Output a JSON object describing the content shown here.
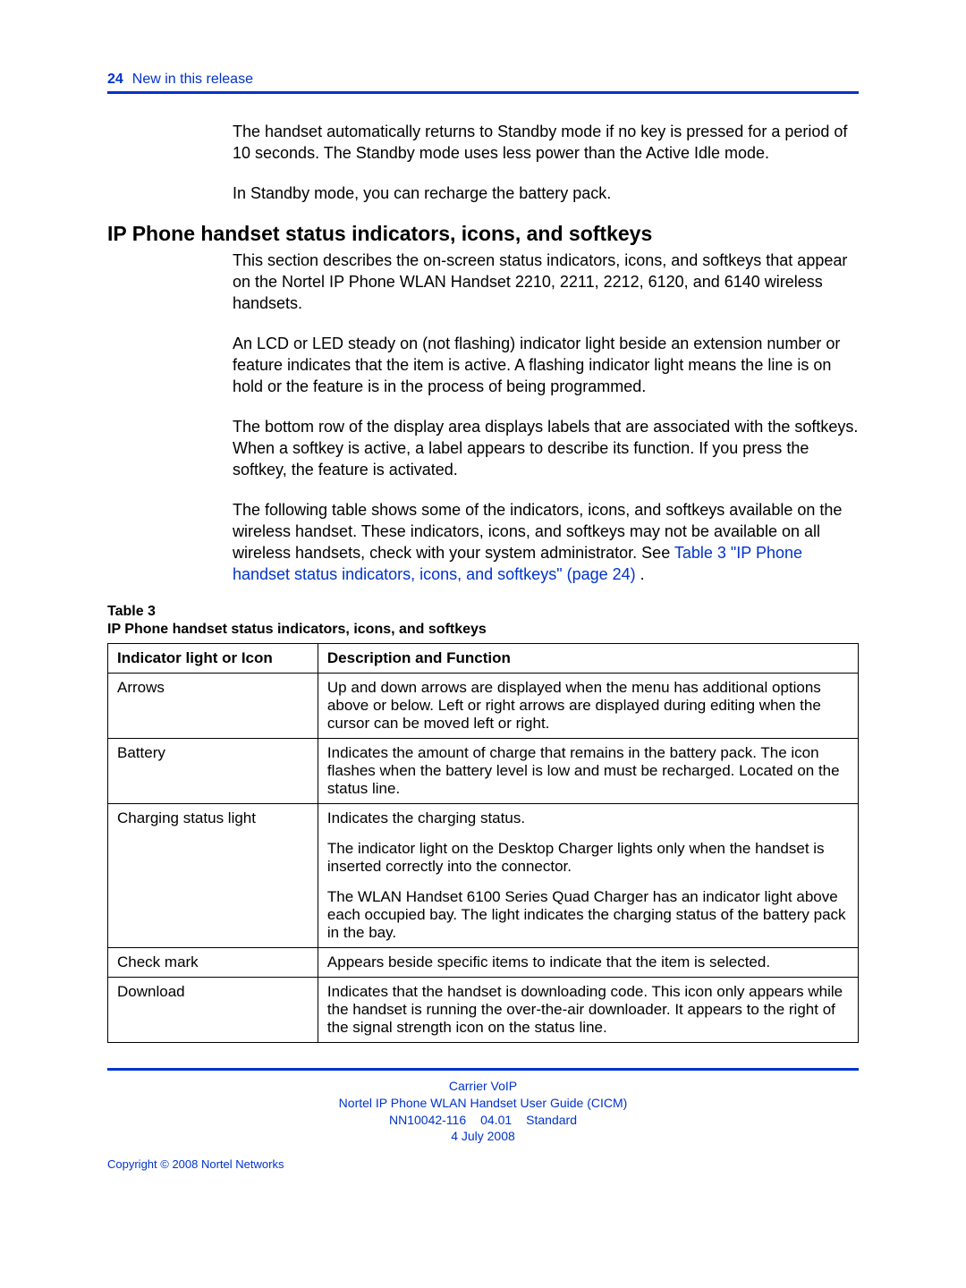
{
  "header": {
    "page_number": "24",
    "section_title": "New in this release"
  },
  "intro": {
    "para1": "The handset automatically returns to Standby mode if no key is pressed for a period of 10 seconds. The Standby mode uses less power than the Active Idle mode.",
    "para2": "In Standby mode, you can recharge the battery pack."
  },
  "section": {
    "heading": "IP Phone handset status indicators, icons, and softkeys",
    "para1": "This section describes the on-screen status indicators, icons, and softkeys that appear on the Nortel IP Phone WLAN Handset 2210, 2211, 2212, 6120, and 6140 wireless handsets.",
    "para2": "An LCD or LED steady on (not flashing) indicator light beside an extension number or feature indicates that the item is active. A flashing indicator light means the line is on hold or the feature is in the process of being programmed.",
    "para3": "The bottom row of the display area displays labels that are associated with the softkeys. When a softkey is active, a label appears to describe its function. If you press the softkey, the feature is activated.",
    "para4_prefix": "The following table shows some of the indicators, icons, and softkeys available on the wireless handset. These indicators, icons, and softkeys may not be available on all wireless handsets, check with your system administrator. See ",
    "para4_link": "Table 3 \"IP Phone handset status indicators, icons, and softkeys\" (page 24)",
    "para4_suffix": " ."
  },
  "table": {
    "label": "Table 3",
    "caption": "IP Phone handset status indicators, icons, and softkeys",
    "header_col1": "Indicator light or Icon",
    "header_col2": "Description and Function",
    "rows": {
      "r0c0": "Arrows",
      "r0c1": "Up and down arrows are displayed when the menu has additional options above or below. Left or right arrows are displayed during editing when the cursor can be moved left or right.",
      "r1c0": "Battery",
      "r1c1": "Indicates the amount of charge that remains in the battery pack. The icon flashes when the battery level is low and must be recharged. Located on the status line.",
      "r2c0": "Charging status light",
      "r2c1a": "Indicates the charging status.",
      "r2c1b": "The indicator light on the Desktop Charger lights only when the handset is inserted correctly into the connector.",
      "r2c1c": "The WLAN Handset 6100 Series Quad Charger has an indicator light above each occupied bay. The light indicates the charging status of the battery pack in the bay.",
      "r3c0": "Check mark",
      "r3c1": "Appears beside specific items to indicate that the item is selected.",
      "r4c0": "Download",
      "r4c1": "Indicates that the handset is downloading code. This icon only appears while the handset is running the over-the-air downloader. It appears to the right of the signal strength icon on the status line."
    }
  },
  "footer": {
    "line1": "Carrier VoIP",
    "line2": "Nortel IP Phone WLAN Handset User Guide (CICM)",
    "line3a": "NN10042-116",
    "line3b": "04.01",
    "line3c": "Standard",
    "line4": "4 July 2008",
    "copyright": "Copyright © 2008 Nortel Networks"
  },
  "colors": {
    "link": "#0033cc",
    "rule": "#0033cc",
    "text": "#000000",
    "background": "#ffffff"
  }
}
